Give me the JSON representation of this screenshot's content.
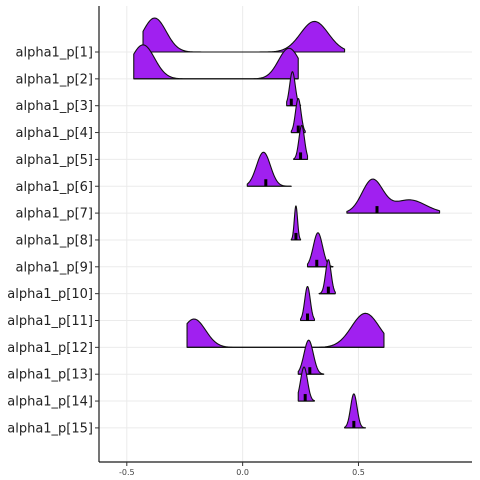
{
  "chart_data": {
    "type": "ridgeline",
    "fill_color": "#a020f0",
    "xlim": [
      -0.62,
      0.99
    ],
    "xticks": [
      {
        "v": -0.5,
        "label": "-0.5"
      },
      {
        "v": 0.0,
        "label": "0.0"
      },
      {
        "v": 0.5,
        "label": "0.5"
      }
    ],
    "grid": true,
    "series": [
      {
        "label": "alpha1_p[1]",
        "median": -0.08,
        "range": [
          -0.43,
          0.44
        ],
        "peaks": [
          {
            "m": -0.38,
            "s": 0.05,
            "w": 1.0
          },
          {
            "m": 0.31,
            "s": 0.06,
            "w": 0.9
          }
        ]
      },
      {
        "label": "alpha1_p[2]",
        "median": -0.07,
        "range": [
          -0.47,
          0.24
        ],
        "peaks": [
          {
            "m": -0.43,
            "s": 0.05,
            "w": 1.0
          },
          {
            "m": 0.2,
            "s": 0.045,
            "w": 0.9
          }
        ]
      },
      {
        "label": "alpha1_p[3]",
        "median": 0.21,
        "range": [
          0.19,
          0.25
        ],
        "peaks": [
          {
            "m": 0.215,
            "s": 0.012,
            "w": 1.0
          }
        ]
      },
      {
        "label": "alpha1_p[4]",
        "median": 0.24,
        "range": [
          0.21,
          0.27
        ],
        "peaks": [
          {
            "m": 0.24,
            "s": 0.012,
            "w": 1.0
          }
        ]
      },
      {
        "label": "alpha1_p[5]",
        "median": 0.25,
        "range": [
          0.22,
          0.28
        ],
        "peaks": [
          {
            "m": 0.255,
            "s": 0.012,
            "w": 1.0
          }
        ]
      },
      {
        "label": "alpha1_p[6]",
        "median": 0.1,
        "range": [
          0.02,
          0.21
        ],
        "peaks": [
          {
            "m": 0.09,
            "s": 0.03,
            "w": 1.0
          }
        ]
      },
      {
        "label": "alpha1_p[7]",
        "median": 0.58,
        "range": [
          0.45,
          0.85
        ],
        "peaks": [
          {
            "m": 0.56,
            "s": 0.045,
            "w": 1.0
          },
          {
            "m": 0.72,
            "s": 0.07,
            "w": 0.4
          }
        ]
      },
      {
        "label": "alpha1_p[8]",
        "median": 0.23,
        "range": [
          0.21,
          0.25
        ],
        "peaks": [
          {
            "m": 0.23,
            "s": 0.007,
            "w": 1.0
          }
        ]
      },
      {
        "label": "alpha1_p[9]",
        "median": 0.32,
        "range": [
          0.28,
          0.39
        ],
        "peaks": [
          {
            "m": 0.325,
            "s": 0.02,
            "w": 1.0
          }
        ]
      },
      {
        "label": "alpha1_p[10]",
        "median": 0.37,
        "range": [
          0.33,
          0.4
        ],
        "peaks": [
          {
            "m": 0.37,
            "s": 0.012,
            "w": 1.0
          }
        ]
      },
      {
        "label": "alpha1_p[11]",
        "median": 0.28,
        "range": [
          0.25,
          0.31
        ],
        "peaks": [
          {
            "m": 0.28,
            "s": 0.012,
            "w": 1.0
          }
        ]
      },
      {
        "label": "alpha1_p[12]",
        "median": 0.06,
        "range": [
          -0.24,
          0.61
        ],
        "peaks": [
          {
            "m": -0.21,
            "s": 0.05,
            "w": 0.75
          },
          {
            "m": 0.53,
            "s": 0.06,
            "w": 0.9
          }
        ]
      },
      {
        "label": "alpha1_p[13]",
        "median": 0.29,
        "range": [
          0.24,
          0.35
        ],
        "peaks": [
          {
            "m": 0.285,
            "s": 0.02,
            "w": 1.0
          }
        ]
      },
      {
        "label": "alpha1_p[14]",
        "median": 0.27,
        "range": [
          0.24,
          0.31
        ],
        "peaks": [
          {
            "m": 0.265,
            "s": 0.015,
            "w": 1.0
          }
        ]
      },
      {
        "label": "alpha1_p[15]",
        "median": 0.48,
        "range": [
          0.44,
          0.53
        ],
        "peaks": [
          {
            "m": 0.48,
            "s": 0.014,
            "w": 1.0
          }
        ]
      }
    ]
  }
}
